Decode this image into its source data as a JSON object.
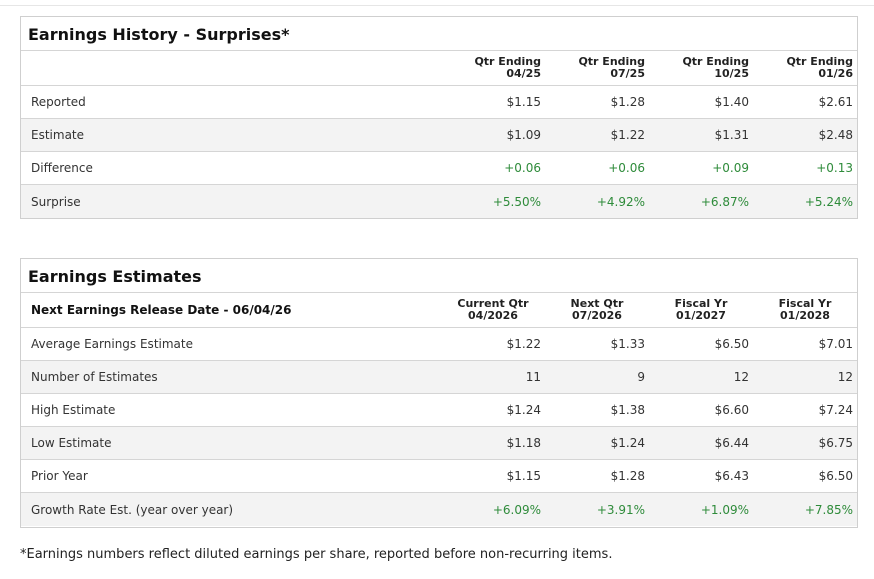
{
  "history": {
    "title": "Earnings History - Surprises*",
    "columns": [
      {
        "line1": "Qtr Ending",
        "line2": "04/25"
      },
      {
        "line1": "Qtr Ending",
        "line2": "07/25"
      },
      {
        "line1": "Qtr Ending",
        "line2": "10/25"
      },
      {
        "line1": "Qtr Ending",
        "line2": "01/26"
      }
    ],
    "rows": [
      {
        "label": "Reported",
        "values": [
          "$1.15",
          "$1.28",
          "$1.40",
          "$2.61"
        ]
      },
      {
        "label": "Estimate",
        "values": [
          "$1.09",
          "$1.22",
          "$1.31",
          "$2.48"
        ]
      },
      {
        "label": "Difference",
        "values": [
          "+0.06",
          "+0.06",
          "+0.09",
          "+0.13"
        ]
      },
      {
        "label": "Surprise",
        "values": [
          "+5.50%",
          "+4.92%",
          "+6.87%",
          "+5.24%"
        ]
      }
    ]
  },
  "estimates": {
    "title": "Earnings Estimates",
    "header_label": "Next Earnings Release Date - 06/04/26",
    "columns": [
      {
        "line1": "Current Qtr",
        "line2": "04/2026"
      },
      {
        "line1": "Next Qtr",
        "line2": "07/2026"
      },
      {
        "line1": "Fiscal Yr",
        "line2": "01/2027"
      },
      {
        "line1": "Fiscal Yr",
        "line2": "01/2028"
      }
    ],
    "rows": [
      {
        "label": "Average Earnings Estimate",
        "values": [
          "$1.22",
          "$1.33",
          "$6.50",
          "$7.01"
        ]
      },
      {
        "label": "Number of Estimates",
        "values": [
          "11",
          "9",
          "12",
          "12"
        ]
      },
      {
        "label": "High Estimate",
        "values": [
          "$1.24",
          "$1.38",
          "$6.60",
          "$7.24"
        ]
      },
      {
        "label": "Low Estimate",
        "values": [
          "$1.18",
          "$1.24",
          "$6.44",
          "$6.75"
        ]
      },
      {
        "label": "Prior Year",
        "values": [
          "$1.15",
          "$1.28",
          "$6.43",
          "$6.50"
        ]
      },
      {
        "label": "Growth Rate Est. (year over year)",
        "values": [
          "+6.09%",
          "+3.91%",
          "+1.09%",
          "+7.85%"
        ]
      }
    ]
  },
  "footnote": "*Earnings numbers reflect diluted earnings per share, reported before non-recurring items.",
  "colors": {
    "positive": "#2e8b3a",
    "alt_row": "#f3f3f3",
    "border": "#d5d5d5"
  }
}
